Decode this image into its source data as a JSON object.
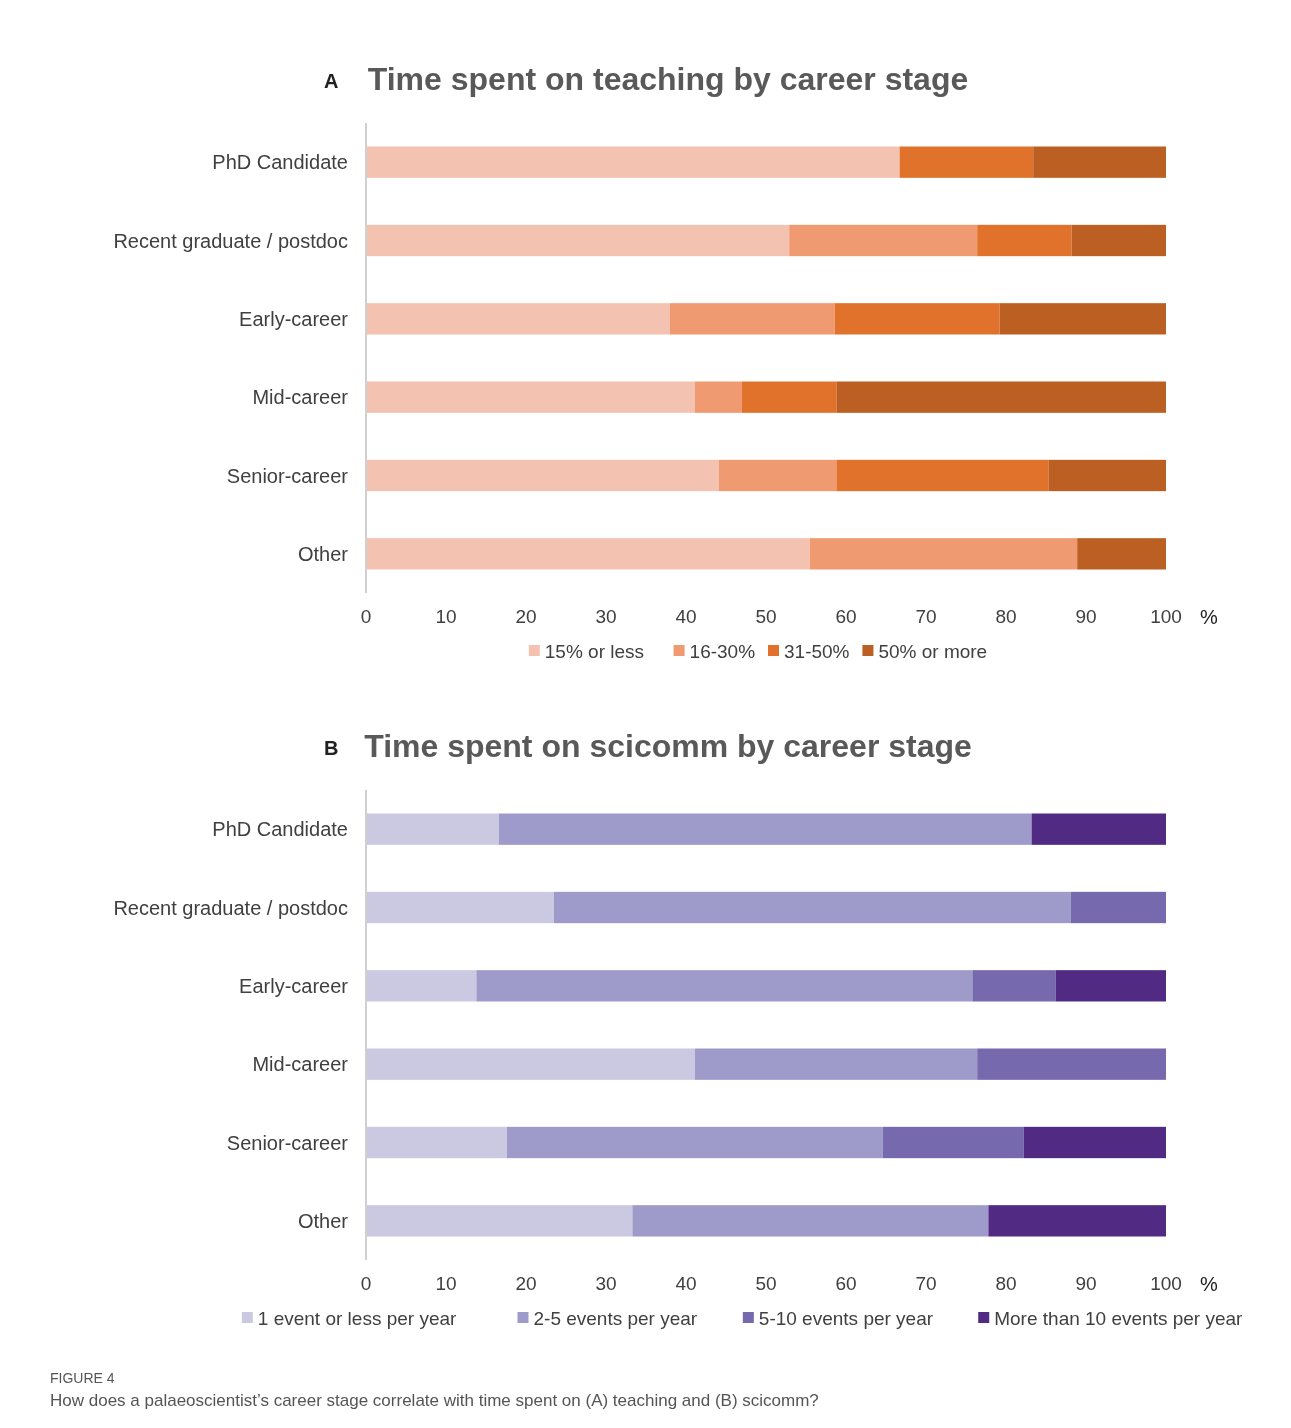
{
  "chart_data": [
    {
      "type": "bar",
      "orientation": "horizontal",
      "stacked": true,
      "title": "Time spent on teaching by career stage",
      "xlabel": "%",
      "annotations": [
        "A"
      ],
      "categories": [
        "PhD Candidate",
        "Recent graduate / postdoc",
        "Early-career",
        "Mid-career",
        "Senior-career",
        "Other"
      ],
      "series": [
        {
          "name": "15% or less",
          "color": "#f4c2b0",
          "values": [
            66.7,
            52.9,
            38,
            41.1,
            44.1,
            55.5
          ]
        },
        {
          "name": "16-30%",
          "color": "#f09a72",
          "values": [
            0,
            23.5,
            20.6,
            5.9,
            14.7,
            33.4
          ]
        },
        {
          "name": "31-50%",
          "color": "#e0722c",
          "values": [
            16.7,
            11.8,
            20.6,
            11.8,
            26.5,
            0
          ]
        },
        {
          "name": "50% or more",
          "color": "#bc5f22",
          "values": [
            16.6,
            11.8,
            20.8,
            41.2,
            14.7,
            11.1
          ]
        }
      ],
      "xlim": [
        0,
        100
      ],
      "xticks": [
        0,
        10,
        20,
        30,
        40,
        50,
        60,
        70,
        80,
        90,
        100
      ],
      "grid": false,
      "legend": "bottom"
    },
    {
      "type": "bar",
      "orientation": "horizontal",
      "stacked": true,
      "title": "Time spent on scicomm by career stage",
      "xlabel": "%",
      "annotations": [
        "B",
        "FIGURE 4",
        "How does a palaeoscientist’s career stage correlate with time spent on (A) teaching and (B) scicomm?"
      ],
      "categories": [
        "PhD Candidate",
        "Recent graduate / postdoc",
        "Early-career",
        "Mid-career",
        "Senior-career",
        "Other"
      ],
      "series": [
        {
          "name": "1 event or less per year",
          "color": "#cbc8e2",
          "values": [
            16.6,
            23.5,
            13.8,
            41.1,
            17.6,
            33.3
          ]
        },
        {
          "name": "2-5 events per year",
          "color": "#9e9ac9",
          "values": [
            66.6,
            64.6,
            62,
            35.3,
            47,
            44.5
          ]
        },
        {
          "name": "5-10 events per year",
          "color": "#7669ae",
          "values": [
            0,
            11.9,
            10.4,
            23.6,
            17.6,
            0
          ]
        },
        {
          "name": "More than 10 events per year",
          "color": "#512a84",
          "values": [
            16.8,
            0,
            13.8,
            0,
            17.8,
            22.2
          ]
        }
      ],
      "xlim": [
        0,
        100
      ],
      "xticks": [
        0,
        10,
        20,
        30,
        40,
        50,
        60,
        70,
        80,
        90,
        100
      ],
      "grid": false,
      "legend": "bottom"
    }
  ]
}
